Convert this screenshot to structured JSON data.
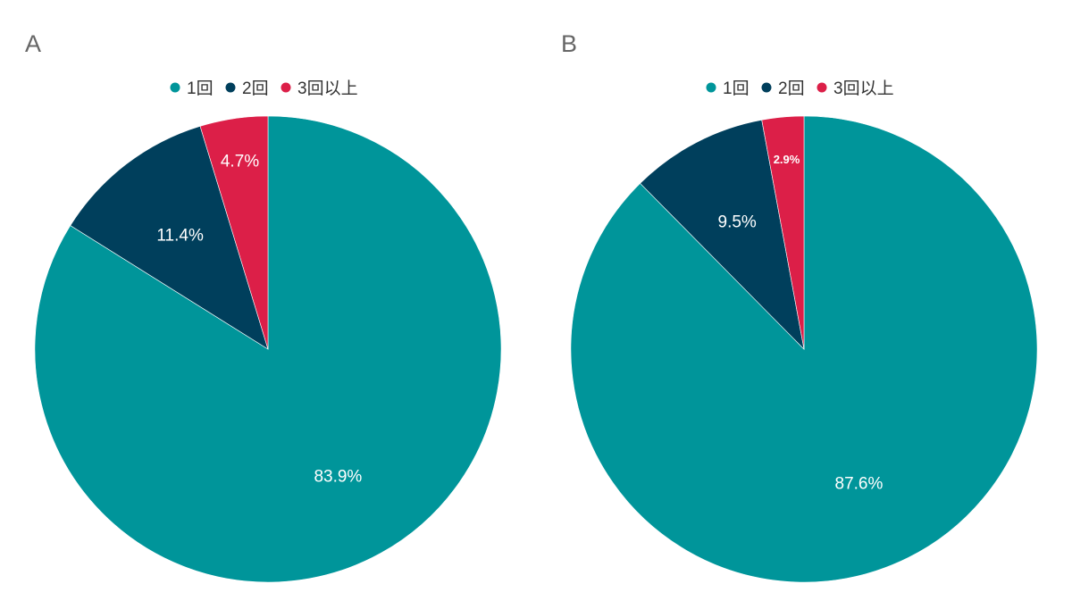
{
  "chart_data": [
    {
      "type": "pie",
      "title": "A",
      "categories": [
        "1回",
        "2回",
        "3回以上"
      ],
      "values": [
        83.9,
        11.4,
        4.7
      ],
      "labels": [
        "83.9%",
        "11.4%",
        "4.7%"
      ],
      "colors": [
        "#00959a",
        "#003f5c",
        "#dc1f48"
      ],
      "legend": "top-center"
    },
    {
      "type": "pie",
      "title": "B",
      "categories": [
        "1回",
        "2回",
        "3回以上"
      ],
      "values": [
        87.6,
        9.5,
        2.9
      ],
      "labels": [
        "87.6%",
        "9.5%",
        "2.9%"
      ],
      "colors": [
        "#00959a",
        "#003f5c",
        "#dc1f48"
      ],
      "legend": "top-center"
    }
  ]
}
